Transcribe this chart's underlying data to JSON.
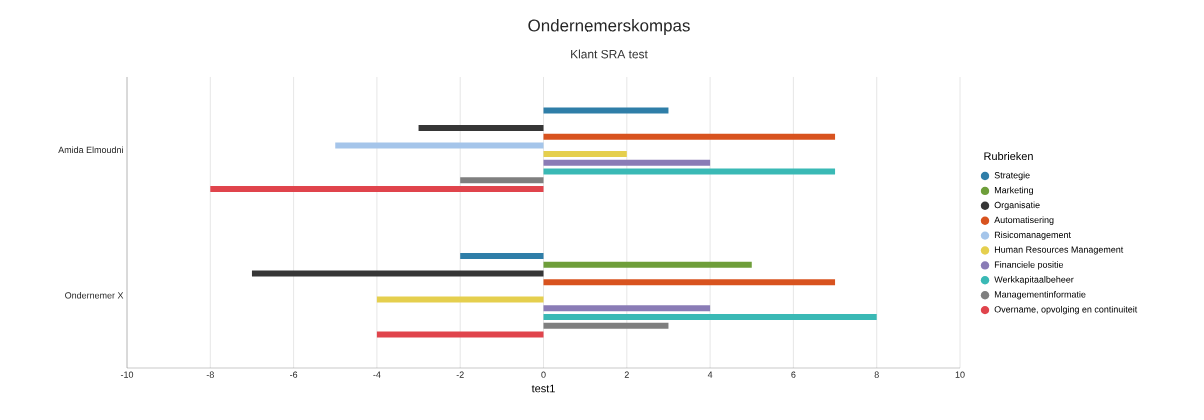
{
  "chart_data": {
    "type": "bar",
    "orientation": "horizontal",
    "title": "Ondernemerskompas",
    "subtitle": "Klant SRA test",
    "xlabel": "test1",
    "legend_title": "Rubrieken",
    "categories": [
      "Amida Elmoudni",
      "Ondernemer X"
    ],
    "series": [
      {
        "name": "Strategie",
        "color": "#2f7ea8",
        "values": [
          3,
          -2
        ]
      },
      {
        "name": "Marketing",
        "color": "#6e9e3a",
        "values": [
          0,
          5
        ]
      },
      {
        "name": "Organisatie",
        "color": "#363636",
        "values": [
          -3,
          -7
        ]
      },
      {
        "name": "Automatisering",
        "color": "#d8531f",
        "values": [
          7,
          7
        ]
      },
      {
        "name": "Risicomanagement",
        "color": "#a5c5ea",
        "values": [
          -5,
          0
        ]
      },
      {
        "name": "Human Resources Management",
        "color": "#e5cf4e",
        "values": [
          2,
          -4
        ]
      },
      {
        "name": "Financiele positie",
        "color": "#8a7cb6",
        "values": [
          4,
          4
        ]
      },
      {
        "name": "Werkkapitaalbeheer",
        "color": "#3ab9b5",
        "values": [
          7,
          8
        ]
      },
      {
        "name": "Managementinformatie",
        "color": "#7f7f7f",
        "values": [
          -2,
          3
        ]
      },
      {
        "name": "Overname, opvolging en continuiteit",
        "color": "#e0444c",
        "values": [
          -8,
          -4
        ]
      }
    ],
    "xlim": [
      -10,
      10
    ],
    "xticks": [
      -10,
      -8,
      -6,
      -4,
      -2,
      0,
      2,
      4,
      6,
      8,
      10
    ],
    "grid": "x",
    "legend": "right"
  }
}
